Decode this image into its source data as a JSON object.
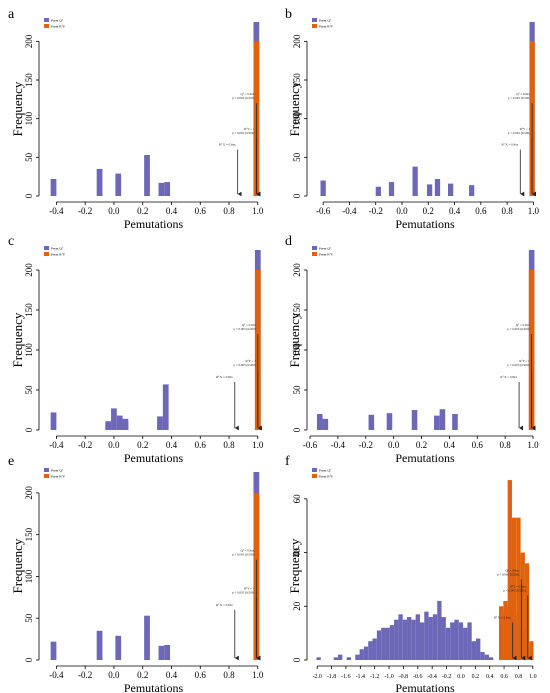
{
  "figure": {
    "colors": {
      "perm_q2": "#6d67b8",
      "perm_r2y": "#e0620e",
      "axis": "#000000",
      "arrow": "#222222"
    },
    "xlabel": "Pemutations",
    "ylabel": "Frequency"
  },
  "chart_data": [
    {
      "panel": "a",
      "type": "bar",
      "xlabel": "Pemutations",
      "ylabel": "Frequency",
      "xlim": [
        -0.5,
        1.05
      ],
      "ylim": [
        0,
        225
      ],
      "xticks": [
        "-0.4",
        "-0.2",
        "0.0",
        "0.2",
        "0.4",
        "0.6",
        "0.8",
        "1.0"
      ],
      "xtick_values": [
        -0.4,
        -0.2,
        0.0,
        0.2,
        0.4,
        0.6,
        0.8,
        1.0
      ],
      "yticks": [
        0,
        50,
        100,
        150,
        200
      ],
      "bar_width": 0.04,
      "legend": [
        "Perm Q²",
        "Perm R²Y"
      ],
      "series": [
        {
          "name": "Perm Q²",
          "points": [
            [
              -0.42,
              22
            ],
            [
              -0.1,
              35
            ],
            [
              0.03,
              29
            ],
            [
              0.23,
              53
            ],
            [
              0.33,
              17
            ],
            [
              0.37,
              18
            ],
            [
              0.99,
              225
            ]
          ]
        },
        {
          "name": "Perm R²Y",
          "points": [
            [
              0.99,
              200
            ]
          ]
        }
      ],
      "annotations": [
        {
          "x": 0.86,
          "y_from": 60,
          "y_to": 0,
          "label": "R² X = 0.8xx"
        },
        {
          "x": 0.99,
          "y_from": 120,
          "y_to": 0,
          "label": "Q² = 0.9xx  p < 0.005 (0/200)"
        },
        {
          "x": 0.99,
          "y_from": 75,
          "y_to": 0,
          "label": "R²Y = 1  p < 0.005 (0/200)"
        }
      ]
    },
    {
      "panel": "b",
      "type": "bar",
      "xlabel": "Pemutations",
      "ylabel": "Frequency",
      "xlim": [
        -0.7,
        1.05
      ],
      "ylim": [
        0,
        225
      ],
      "xticks": [
        "-0.6",
        "-0.4",
        "-0.2",
        "0.0",
        "0.2",
        "0.4",
        "0.6",
        "0.8",
        "1.0"
      ],
      "xtick_values": [
        -0.6,
        -0.4,
        -0.2,
        0.0,
        0.2,
        0.4,
        0.6,
        0.8,
        1.0
      ],
      "yticks": [
        0,
        50,
        100,
        150,
        200
      ],
      "bar_width": 0.04,
      "legend": [
        "Perm Q²",
        "Perm R²Y"
      ],
      "series": [
        {
          "name": "Perm Q²",
          "points": [
            [
              -0.6,
              20
            ],
            [
              -0.18,
              12
            ],
            [
              -0.08,
              18
            ],
            [
              0.1,
              38
            ],
            [
              0.21,
              15
            ],
            [
              0.27,
              22
            ],
            [
              0.37,
              16
            ],
            [
              0.53,
              14
            ],
            [
              0.99,
              225
            ]
          ]
        },
        {
          "name": "Perm R²Y",
          "points": [
            [
              0.99,
              200
            ]
          ]
        }
      ],
      "annotations": [
        {
          "x": 0.9,
          "y_from": 60,
          "y_to": 0,
          "label": "R² X = 0.8xx"
        },
        {
          "x": 0.99,
          "y_from": 120,
          "y_to": 0,
          "label": "Q² = 0.9xx  p < 0.005 (0/200)"
        },
        {
          "x": 0.99,
          "y_from": 75,
          "y_to": 0,
          "label": "R²Y = 1  p < 0.005 (0/200)"
        }
      ]
    },
    {
      "panel": "c",
      "type": "bar",
      "xlabel": "Pemutations",
      "ylabel": "Frequency",
      "xlim": [
        -0.5,
        1.05
      ],
      "ylim": [
        0,
        225
      ],
      "xticks": [
        "-0.4",
        "-0.2",
        "0.0",
        "0.2",
        "0.4",
        "0.6",
        "0.8",
        "1.0"
      ],
      "xtick_values": [
        -0.4,
        -0.2,
        0.0,
        0.2,
        0.4,
        0.6,
        0.8,
        1.0
      ],
      "yticks": [
        0,
        50,
        100,
        150,
        200
      ],
      "bar_width": 0.04,
      "legend": [
        "Perm Q²",
        "Perm R²Y"
      ],
      "series": [
        {
          "name": "Perm Q²",
          "points": [
            [
              -0.42,
              22
            ],
            [
              -0.04,
              11
            ],
            [
              0.0,
              27
            ],
            [
              0.04,
              18
            ],
            [
              0.08,
              10
            ],
            [
              0.08,
              14
            ],
            [
              0.32,
              17
            ],
            [
              0.36,
              57
            ],
            [
              1.0,
              225
            ]
          ]
        },
        {
          "name": "Perm R²Y",
          "points": [
            [
              1.0,
              200
            ]
          ]
        }
      ],
      "annotations": [
        {
          "x": 0.84,
          "y_from": 60,
          "y_to": 0,
          "label": "R² X = 0.8xx"
        },
        {
          "x": 1.0,
          "y_from": 120,
          "y_to": 0,
          "label": "Q² = 0.9xx  p < 0.005 (0/200)"
        },
        {
          "x": 1.0,
          "y_from": 75,
          "y_to": 0,
          "label": "R²Y = 1  p < 0.005 (0/200)"
        }
      ]
    },
    {
      "panel": "d",
      "type": "bar",
      "xlabel": "Pemutations",
      "ylabel": "Frequency",
      "xlim": [
        -0.6,
        1.05
      ],
      "ylim": [
        0,
        225
      ],
      "xticks": [
        "-0.6",
        "-0.4",
        "-0.2",
        "0.0",
        "0.2",
        "0.4",
        "0.6",
        "0.8",
        "1.0"
      ],
      "xtick_values": [
        -0.6,
        -0.4,
        -0.2,
        0.0,
        0.2,
        0.4,
        0.6,
        0.8,
        1.0
      ],
      "yticks": [
        0,
        50,
        100,
        150,
        200
      ],
      "bar_width": 0.04,
      "legend": [
        "Perm Q²",
        "Perm R²Y"
      ],
      "series": [
        {
          "name": "Perm Q²",
          "points": [
            [
              -0.53,
              20
            ],
            [
              -0.49,
              14
            ],
            [
              -0.16,
              19
            ],
            [
              -0.03,
              21
            ],
            [
              0.15,
              25
            ],
            [
              0.31,
              18
            ],
            [
              0.35,
              26
            ],
            [
              0.44,
              20
            ],
            [
              0.99,
              225
            ]
          ]
        },
        {
          "name": "Perm R²Y",
          "points": [
            [
              0.99,
              200
            ]
          ]
        }
      ],
      "annotations": [
        {
          "x": 0.9,
          "y_from": 60,
          "y_to": 0,
          "label": "R² X = 0.8xx"
        },
        {
          "x": 0.99,
          "y_from": 120,
          "y_to": 0,
          "label": "Q² = 0.9xx  p < 0.005 (0/200)"
        },
        {
          "x": 0.99,
          "y_from": 75,
          "y_to": 0,
          "label": "R²Y = 1  p < 0.005 (0/200)"
        }
      ]
    },
    {
      "panel": "e",
      "type": "bar",
      "xlabel": "Pemutations",
      "ylabel": "Frequency",
      "xlim": [
        -0.5,
        1.05
      ],
      "ylim": [
        0,
        225
      ],
      "xticks": [
        "-0.4",
        "-0.2",
        "0.0",
        "0.2",
        "0.4",
        "0.6",
        "0.8",
        "1.0"
      ],
      "xtick_values": [
        -0.4,
        -0.2,
        0.0,
        0.2,
        0.4,
        0.6,
        0.8,
        1.0
      ],
      "yticks": [
        0,
        50,
        100,
        150,
        200
      ],
      "bar_width": 0.04,
      "legend": [
        "Perm Q²",
        "Perm R²Y"
      ],
      "series": [
        {
          "name": "Perm Q²",
          "points": [
            [
              -0.42,
              22
            ],
            [
              -0.1,
              35
            ],
            [
              0.03,
              29
            ],
            [
              0.23,
              53
            ],
            [
              0.33,
              17
            ],
            [
              0.37,
              18
            ],
            [
              0.99,
              225
            ]
          ]
        },
        {
          "name": "Perm R²Y",
          "points": [
            [
              0.99,
              200
            ]
          ]
        }
      ],
      "annotations": [
        {
          "x": 0.84,
          "y_from": 60,
          "y_to": 0,
          "label": "R² X = 0.8xx"
        },
        {
          "x": 0.99,
          "y_from": 120,
          "y_to": 0,
          "label": "Q² = 0.9xx  p < 0.005 (0/200)"
        },
        {
          "x": 0.99,
          "y_from": 75,
          "y_to": 0,
          "label": "R²Y = 1  p < 0.005 (0/200)"
        }
      ]
    },
    {
      "panel": "f",
      "type": "bar",
      "xlabel": "Pemutations",
      "ylabel": "Frequency",
      "xlim": [
        -2.1,
        1.1
      ],
      "ylim": [
        0,
        70
      ],
      "xticks": [
        "-2.0",
        "-1.8",
        "-1.6",
        "-1.4",
        "-1.2",
        "-1.0",
        "-0.8",
        "-0.6",
        "-0.4",
        "-0.2",
        "0.0",
        "0.2",
        "0.4",
        "0.6",
        "0.8",
        "1.0"
      ],
      "xtick_values": [
        -2.0,
        -1.8,
        -1.6,
        -1.4,
        -1.2,
        -1.0,
        -0.8,
        -0.6,
        -0.4,
        -0.2,
        0.0,
        0.2,
        0.4,
        0.6,
        0.8,
        1.0
      ],
      "yticks": [
        0,
        20,
        40,
        60
      ],
      "bar_width": 0.06,
      "legend": [
        "Perm Q²",
        "Perm R²Y"
      ],
      "series": [
        {
          "name": "Perm Q²",
          "points": [
            [
              -1.98,
              1
            ],
            [
              -1.74,
              1
            ],
            [
              -1.68,
              2
            ],
            [
              -1.56,
              1
            ],
            [
              -1.44,
              2
            ],
            [
              -1.38,
              4
            ],
            [
              -1.32,
              5
            ],
            [
              -1.26,
              7
            ],
            [
              -1.2,
              8
            ],
            [
              -1.14,
              11
            ],
            [
              -1.08,
              12
            ],
            [
              -1.02,
              12
            ],
            [
              -0.96,
              13
            ],
            [
              -0.9,
              15
            ],
            [
              -0.84,
              17
            ],
            [
              -0.78,
              15
            ],
            [
              -0.72,
              16
            ],
            [
              -0.66,
              15
            ],
            [
              -0.6,
              17
            ],
            [
              -0.54,
              14
            ],
            [
              -0.48,
              18
            ],
            [
              -0.42,
              16
            ],
            [
              -0.36,
              17
            ],
            [
              -0.3,
              22
            ],
            [
              -0.24,
              16
            ],
            [
              -0.18,
              12
            ],
            [
              -0.12,
              14
            ],
            [
              -0.06,
              15
            ],
            [
              0.0,
              14
            ],
            [
              0.06,
              12
            ],
            [
              0.12,
              14
            ],
            [
              0.18,
              7
            ],
            [
              0.24,
              8
            ],
            [
              0.3,
              3
            ],
            [
              0.36,
              2
            ],
            [
              0.42,
              1
            ],
            [
              0.56,
              18
            ],
            [
              0.62,
              16
            ],
            [
              0.68,
              20
            ],
            [
              0.74,
              18
            ],
            [
              0.8,
              14
            ],
            [
              0.86,
              11
            ]
          ]
        },
        {
          "name": "Perm R²Y",
          "points": [
            [
              0.56,
              20
            ],
            [
              0.62,
              22
            ],
            [
              0.68,
              67
            ],
            [
              0.74,
              53
            ],
            [
              0.8,
              53
            ],
            [
              0.86,
              40
            ],
            [
              0.92,
              36
            ],
            [
              0.98,
              7
            ]
          ]
        }
      ],
      "annotations": [
        {
          "x": 0.72,
          "y_from": 14,
          "y_to": 0,
          "label": "R² X = 0.8xx"
        },
        {
          "x": 0.84,
          "y_from": 30,
          "y_to": 0,
          "label": "Q² = 0.8xx  p < 0.005 (0/200)"
        },
        {
          "x": 0.93,
          "y_from": 24,
          "y_to": 0,
          "label": "R²Y = 0.9xx  p < 0.005 (0/200)"
        }
      ]
    }
  ]
}
